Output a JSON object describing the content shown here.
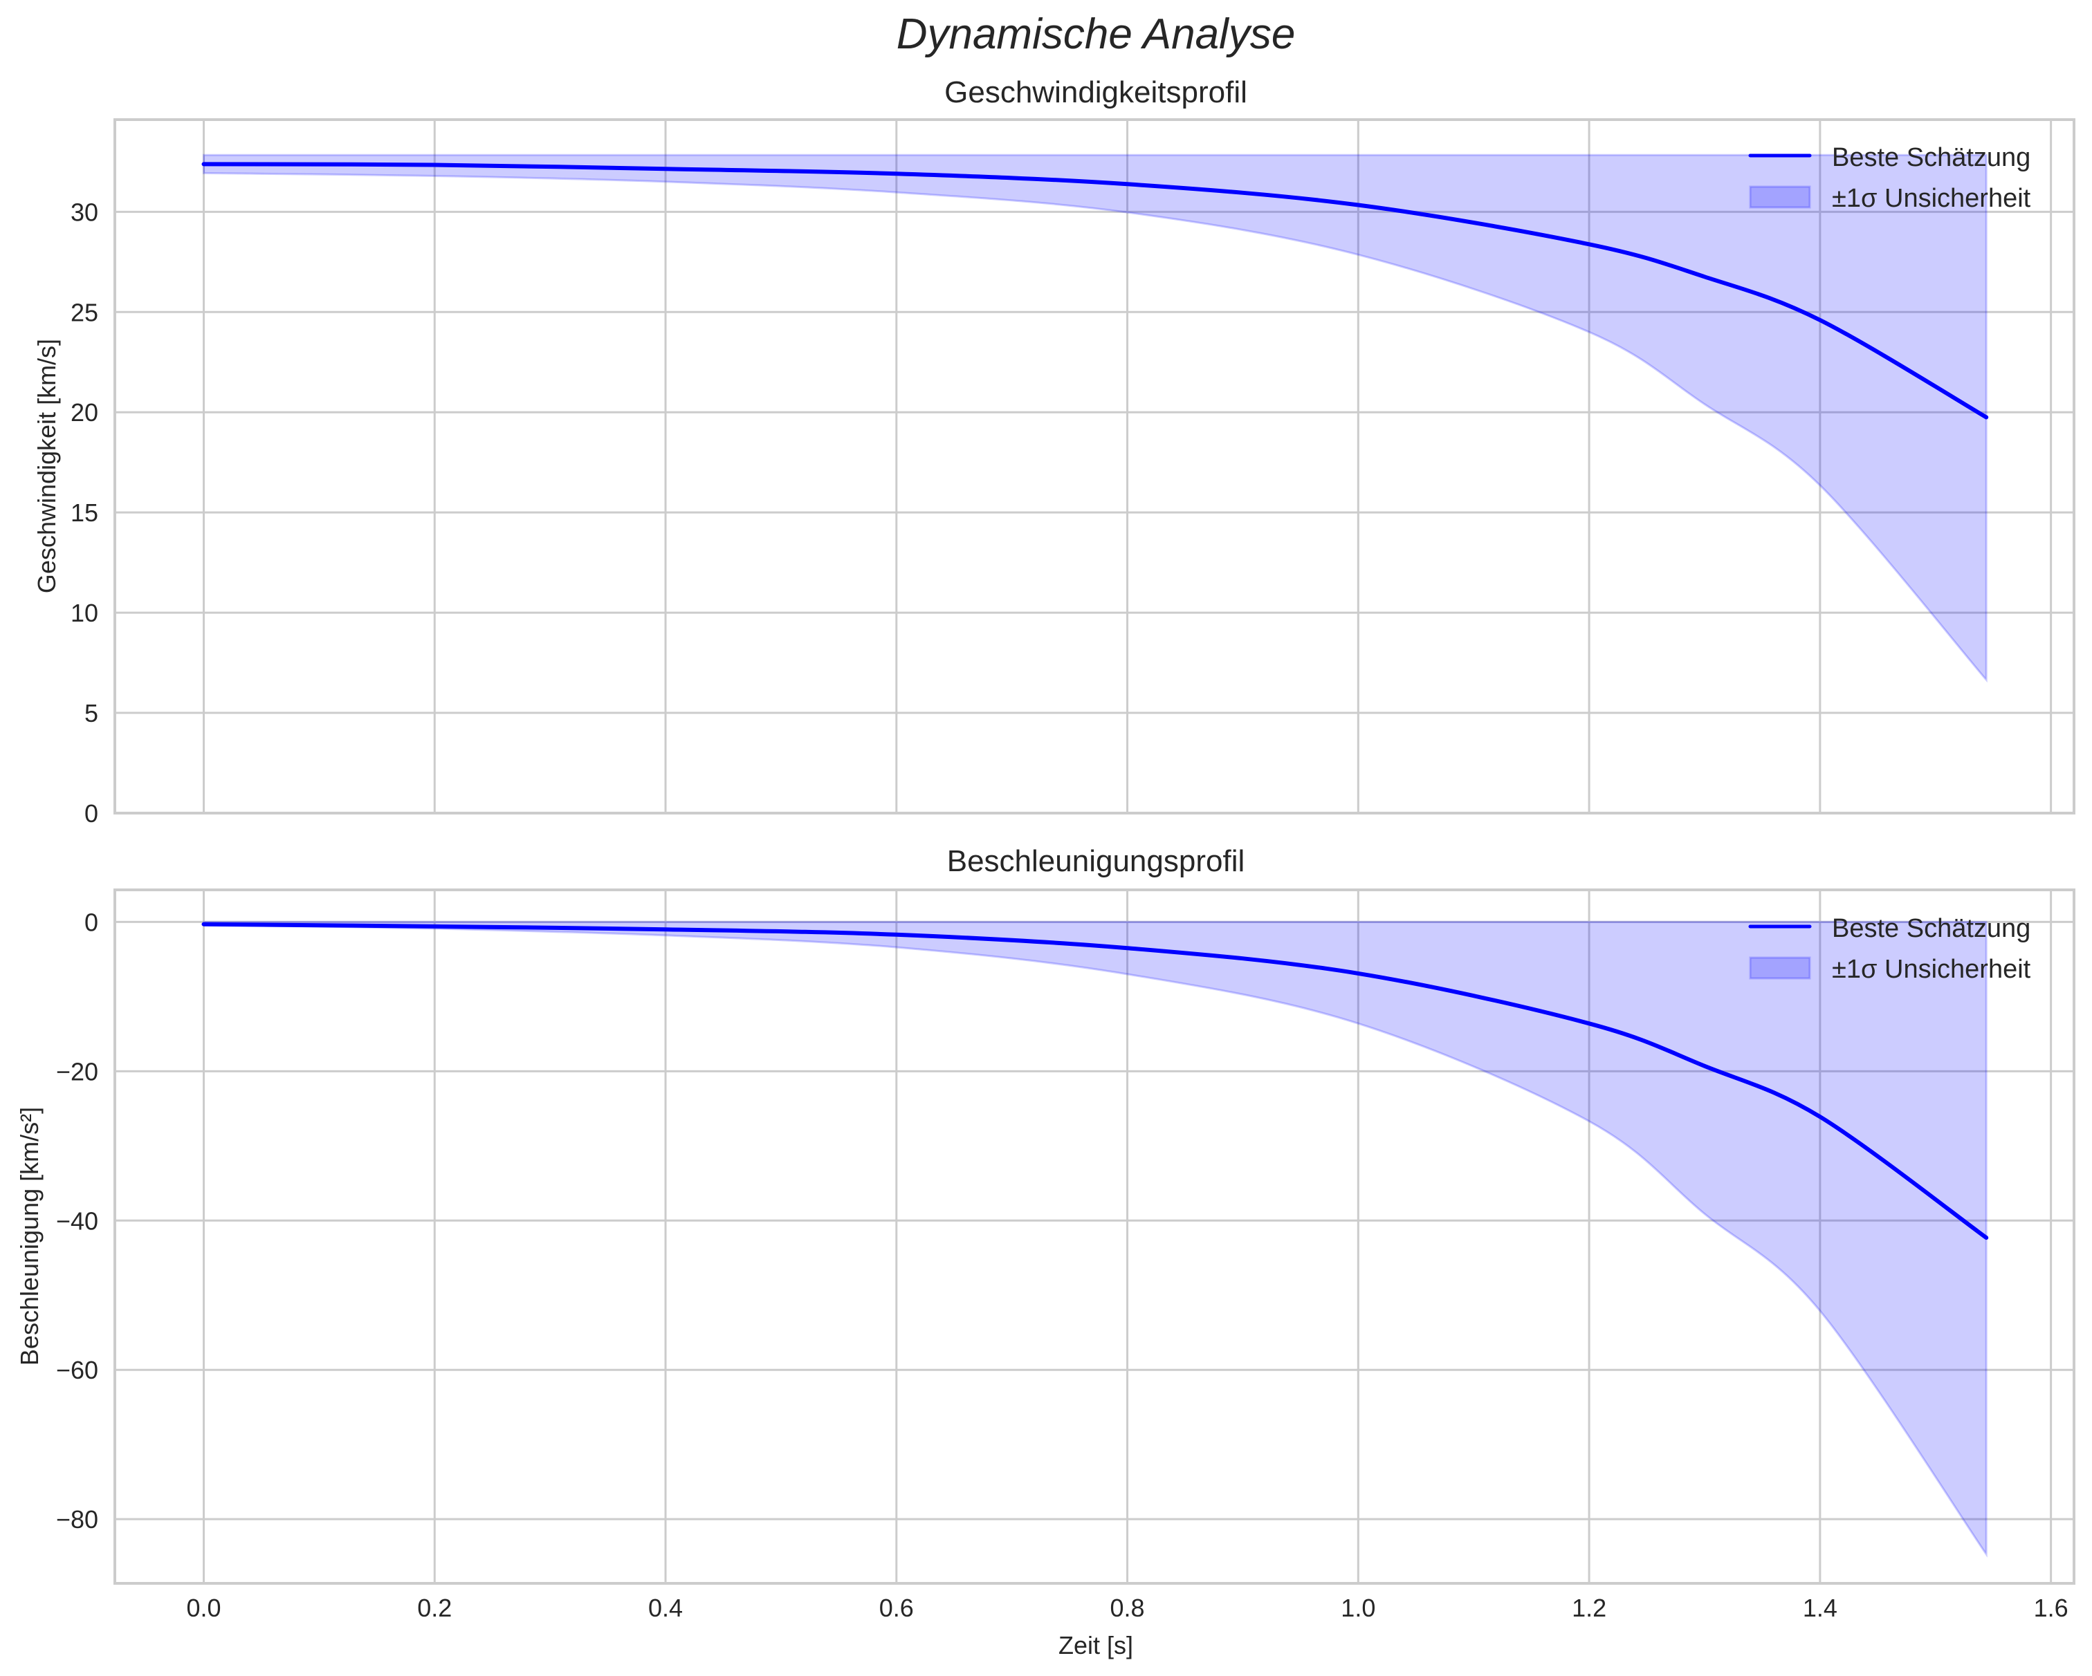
{
  "figure": {
    "suptitle": "Dynamische Analyse",
    "xlabel": "Zeit [s]"
  },
  "colors": {
    "line": "#0000ff",
    "band": "#0000ff",
    "band_alpha": 0.2,
    "grid": "#cccccc",
    "text": "#262626"
  },
  "legend": {
    "line_label": "Beste Schätzung",
    "band_label": "±1σ Unsicherheit"
  },
  "panels": [
    {
      "title": "Geschwindigkeitsprofil",
      "ylabel": "Geschwindigkeit [km/s]",
      "yticks": [
        "0",
        "5",
        "10",
        "15",
        "20",
        "25",
        "30"
      ]
    },
    {
      "title": "Beschleunigungsprofil",
      "ylabel": "Beschleunigung [km/s²]",
      "yticks": [
        "−80",
        "−60",
        "−40",
        "−20",
        "0"
      ]
    }
  ],
  "xticks": [
    "0.0",
    "0.2",
    "0.4",
    "0.6",
    "0.8",
    "1.0",
    "1.2",
    "1.4",
    "1.6"
  ],
  "chart_data": [
    {
      "type": "line",
      "title": "Geschwindigkeitsprofil",
      "suptitle": "Dynamische Analyse",
      "xlabel": "Zeit [s]",
      "ylabel": "Geschwindigkeit [km/s]",
      "xlim": [
        -0.077,
        1.62
      ],
      "ylim": [
        0,
        34.6
      ],
      "xticks": [
        0.0,
        0.2,
        0.4,
        0.6,
        0.8,
        1.0,
        1.2,
        1.4,
        1.6
      ],
      "yticks": [
        0,
        5,
        10,
        15,
        20,
        25,
        30
      ],
      "grid": true,
      "legend_position": "upper right",
      "x": [
        0.0,
        0.2,
        0.4,
        0.6,
        0.8,
        1.0,
        1.2,
        1.3,
        1.4,
        1.544
      ],
      "series": [
        {
          "name": "Beste Schätzung",
          "type": "line",
          "values": [
            32.38,
            32.34,
            32.14,
            31.9,
            31.38,
            30.34,
            28.38,
            26.76,
            24.6,
            19.75
          ]
        },
        {
          "name": "±1σ Unsicherheit (untere Grenze)",
          "type": "area-band-lower",
          "values": [
            31.93,
            31.79,
            31.5,
            30.97,
            29.97,
            27.86,
            24.0,
            20.4,
            16.35,
            6.65
          ]
        },
        {
          "name": "±1σ Unsicherheit (obere Grenze)",
          "type": "area-band-upper",
          "values": [
            32.83,
            32.83,
            32.83,
            32.83,
            32.83,
            32.83,
            32.83,
            32.83,
            32.83,
            32.83
          ]
        }
      ]
    },
    {
      "type": "line",
      "title": "Beschleunigungsprofil",
      "xlabel": "Zeit [s]",
      "ylabel": "Beschleunigung [km/s²]",
      "xlim": [
        -0.077,
        1.62
      ],
      "ylim": [
        -88.6,
        4.3
      ],
      "xticks": [
        0.0,
        0.2,
        0.4,
        0.6,
        0.8,
        1.0,
        1.2,
        1.4,
        1.6
      ],
      "yticks": [
        -80,
        -60,
        -40,
        -20,
        0
      ],
      "grid": true,
      "legend_position": "upper right",
      "x": [
        0.0,
        0.2,
        0.4,
        0.6,
        0.8,
        1.0,
        1.2,
        1.3,
        1.4,
        1.544
      ],
      "series": [
        {
          "name": "Beste Schätzung",
          "type": "line",
          "values": [
            -0.3,
            -0.6,
            -1.0,
            -1.7,
            -3.5,
            -6.9,
            -13.6,
            -19.3,
            -26.1,
            -42.3
          ]
        },
        {
          "name": "±1σ Unsicherheit (untere Grenze)",
          "type": "area-band-lower",
          "values": [
            -0.4,
            -0.9,
            -1.8,
            -3.4,
            -7.0,
            -13.6,
            -26.7,
            -39.1,
            -52.1,
            -84.7
          ]
        },
        {
          "name": "±1σ Unsicherheit (obere Grenze)",
          "type": "area-band-upper",
          "values": [
            0,
            0,
            0,
            0,
            0,
            0,
            0,
            0,
            0,
            0
          ]
        }
      ]
    }
  ]
}
